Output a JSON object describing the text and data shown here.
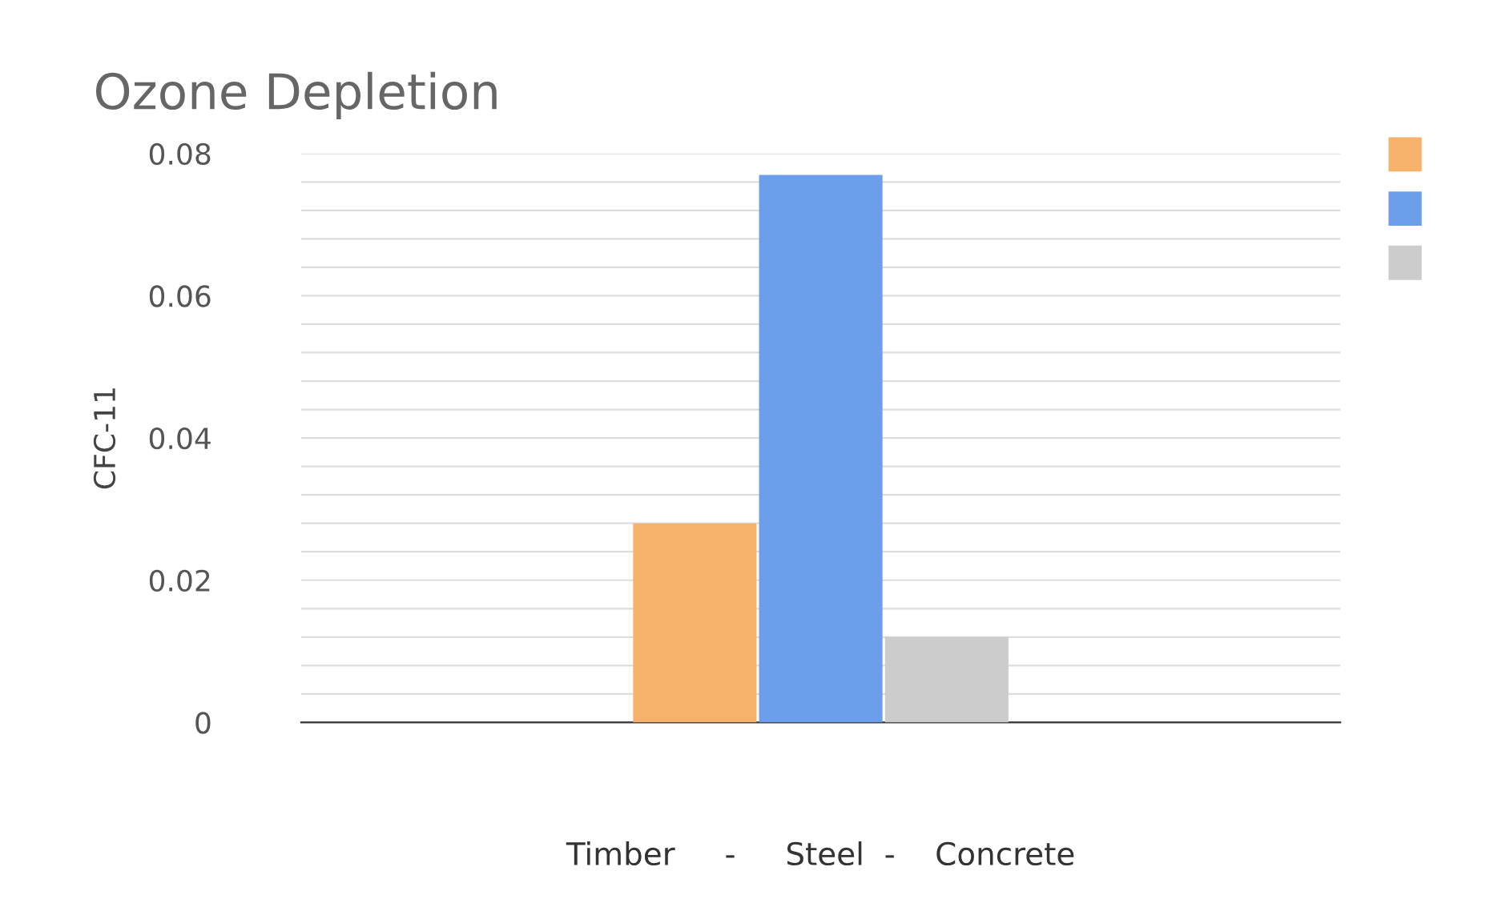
{
  "chart_data": {
    "type": "bar",
    "title": "Ozone Depletion",
    "xlabel": "Timber     -     Steel  -    Concrete",
    "ylabel": "CFC-11",
    "categories": [
      null
    ],
    "series": [
      {
        "color": "#f6b26b",
        "values": [
          0.028
        ]
      },
      {
        "color": "#6d9eeb",
        "values": [
          0.077
        ]
      },
      {
        "color": "#cccccc",
        "values": [
          0.012
        ]
      }
    ],
    "ylim": [
      0,
      0.08
    ],
    "yticks": [
      0,
      {
        "value": 0.004,
        "label": null
      },
      {
        "value": 0.008,
        "label": null
      },
      {
        "value": 0.012,
        "label": null
      },
      {
        "value": 0.016,
        "label": null
      },
      0.02,
      {
        "value": 0.024,
        "label": null
      },
      {
        "value": 0.028,
        "label": null
      },
      {
        "value": 0.032,
        "label": null
      },
      {
        "value": 0.036,
        "label": null
      },
      0.04,
      {
        "value": 0.044,
        "label": null
      },
      {
        "value": 0.048,
        "label": null
      },
      {
        "value": 0.052,
        "label": null
      },
      {
        "value": 0.056,
        "label": null
      },
      0.06,
      {
        "value": 0.064,
        "label": null
      },
      {
        "value": 0.068,
        "label": null
      },
      {
        "value": 0.072,
        "label": null
      },
      {
        "value": 0.076,
        "label": null
      },
      0.08
    ],
    "grid": "y"
  }
}
